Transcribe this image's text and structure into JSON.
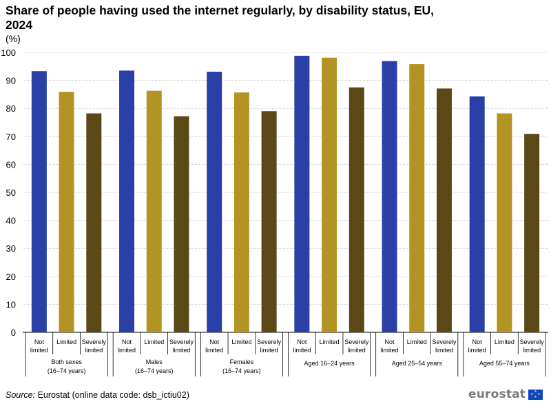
{
  "title": "Share of people having used the internet regularly, by disability status, EU, 2024",
  "unit": "(%)",
  "source_label": "Source:",
  "source_text": "Eurostat (online data code: dsb_ictiu02)",
  "logo_text": "eurostat",
  "colors": {
    "not_limited": "#2a40a6",
    "limited": "#b29324",
    "severely_limited": "#5a4816"
  },
  "chart_data": {
    "type": "bar",
    "ylim": [
      0,
      100
    ],
    "yticks": [
      0,
      10,
      20,
      30,
      40,
      50,
      60,
      70,
      80,
      90,
      100
    ],
    "grid": true,
    "subcategories": [
      [
        "Not",
        "limited"
      ],
      [
        "Limited"
      ],
      [
        "Severely",
        "limited"
      ]
    ],
    "groups": [
      {
        "label": [
          "Both sexes",
          "(16–74 years)"
        ],
        "values": [
          93.3,
          85.9,
          78.2
        ]
      },
      {
        "label": [
          "Males",
          "(16–74 years)"
        ],
        "values": [
          93.5,
          86.3,
          77.2
        ]
      },
      {
        "label": [
          "Females",
          "(16–74 years)"
        ],
        "values": [
          93.1,
          85.7,
          79.0
        ]
      },
      {
        "label": [
          "Aged 16–24 years"
        ],
        "values": [
          98.8,
          98.1,
          87.5
        ]
      },
      {
        "label": [
          "Aged 25–54 years"
        ],
        "values": [
          96.9,
          95.8,
          87.1
        ]
      },
      {
        "label": [
          "Aged 55–74 years"
        ],
        "values": [
          84.3,
          78.2,
          70.9
        ]
      }
    ]
  }
}
